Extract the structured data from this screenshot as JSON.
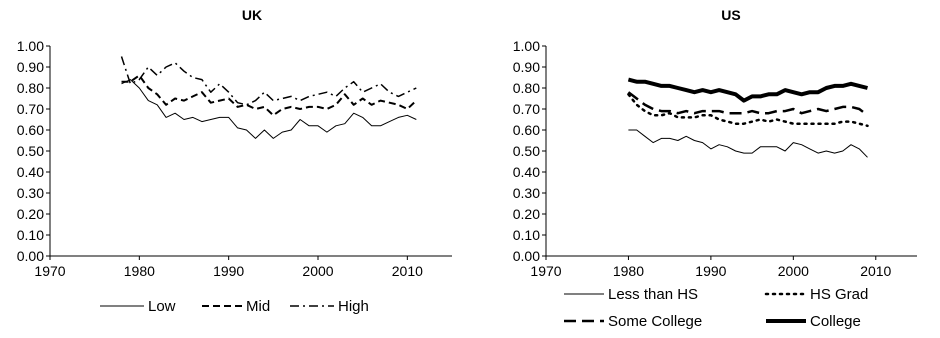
{
  "chart_data": [
    {
      "type": "line",
      "title": "UK",
      "xlabel": "",
      "ylabel": "",
      "xlim": [
        1970,
        2015
      ],
      "ylim": [
        0,
        1
      ],
      "x_ticks": [
        1970,
        1980,
        1990,
        2000,
        2010
      ],
      "y_ticks": [
        "0.00",
        "0.10",
        "0.20",
        "0.30",
        "0.40",
        "0.50",
        "0.60",
        "0.70",
        "0.80",
        "0.90",
        "1.00"
      ],
      "grid": false,
      "legend_position": "bottom",
      "x": [
        1978,
        1979,
        1980,
        1981,
        1982,
        1983,
        1984,
        1985,
        1986,
        1987,
        1988,
        1989,
        1990,
        1991,
        1992,
        1993,
        1994,
        1995,
        1996,
        1997,
        1998,
        1999,
        2000,
        2001,
        2002,
        2003,
        2004,
        2005,
        2006,
        2007,
        2008,
        2009,
        2010,
        2011
      ],
      "series": [
        {
          "name": "Low",
          "dash": "solid",
          "width": 1,
          "values": [
            0.82,
            0.84,
            0.8,
            0.74,
            0.72,
            0.66,
            0.68,
            0.65,
            0.66,
            0.64,
            0.65,
            0.66,
            0.66,
            0.61,
            0.6,
            0.56,
            0.6,
            0.56,
            0.59,
            0.6,
            0.65,
            0.62,
            0.62,
            0.59,
            0.62,
            0.63,
            0.68,
            0.66,
            0.62,
            0.62,
            0.64,
            0.66,
            0.67,
            0.65
          ]
        },
        {
          "name": "Mid",
          "dash": "dash",
          "width": 2,
          "values": [
            0.83,
            0.83,
            0.86,
            0.8,
            0.77,
            0.72,
            0.75,
            0.74,
            0.76,
            0.78,
            0.73,
            0.74,
            0.75,
            0.71,
            0.72,
            0.7,
            0.71,
            0.67,
            0.7,
            0.71,
            0.7,
            0.71,
            0.71,
            0.7,
            0.72,
            0.77,
            0.72,
            0.75,
            0.72,
            0.74,
            0.73,
            0.72,
            0.7,
            0.74
          ]
        },
        {
          "name": "High",
          "dash": "dashdot",
          "width": 1.5,
          "values": [
            0.95,
            0.82,
            0.84,
            0.9,
            0.86,
            0.9,
            0.92,
            0.88,
            0.85,
            0.84,
            0.78,
            0.82,
            0.78,
            0.73,
            0.72,
            0.74,
            0.78,
            0.74,
            0.75,
            0.76,
            0.74,
            0.76,
            0.77,
            0.78,
            0.76,
            0.8,
            0.83,
            0.78,
            0.8,
            0.82,
            0.78,
            0.76,
            0.78,
            0.8
          ]
        }
      ]
    },
    {
      "type": "line",
      "title": "US",
      "xlabel": "",
      "ylabel": "",
      "xlim": [
        1970,
        2015
      ],
      "ylim": [
        0,
        1
      ],
      "x_ticks": [
        1970,
        1980,
        1990,
        2000,
        2010
      ],
      "y_ticks": [
        "0.00",
        "0.10",
        "0.20",
        "0.30",
        "0.40",
        "0.50",
        "0.60",
        "0.70",
        "0.80",
        "0.90",
        "1.00"
      ],
      "grid": false,
      "legend_position": "bottom",
      "x": [
        1980,
        1981,
        1982,
        1983,
        1984,
        1985,
        1986,
        1987,
        1988,
        1989,
        1990,
        1991,
        1992,
        1993,
        1994,
        1995,
        1996,
        1997,
        1998,
        1999,
        2000,
        2001,
        2002,
        2003,
        2004,
        2005,
        2006,
        2007,
        2008,
        2009
      ],
      "series": [
        {
          "name": "Less than HS",
          "dash": "solid",
          "width": 1,
          "values": [
            0.6,
            0.6,
            0.57,
            0.54,
            0.56,
            0.56,
            0.55,
            0.57,
            0.55,
            0.54,
            0.51,
            0.53,
            0.52,
            0.5,
            0.49,
            0.49,
            0.52,
            0.52,
            0.52,
            0.5,
            0.54,
            0.53,
            0.51,
            0.49,
            0.5,
            0.49,
            0.5,
            0.53,
            0.51,
            0.47
          ]
        },
        {
          "name": "HS Grad",
          "dash": "dot",
          "width": 2.5,
          "values": [
            0.77,
            0.72,
            0.69,
            0.67,
            0.67,
            0.68,
            0.66,
            0.66,
            0.66,
            0.67,
            0.67,
            0.65,
            0.64,
            0.63,
            0.63,
            0.64,
            0.65,
            0.64,
            0.65,
            0.64,
            0.63,
            0.63,
            0.63,
            0.63,
            0.63,
            0.63,
            0.64,
            0.64,
            0.63,
            0.62
          ]
        },
        {
          "name": "Some College",
          "dash": "longdash",
          "width": 2.5,
          "values": [
            0.78,
            0.75,
            0.72,
            0.7,
            0.69,
            0.69,
            0.68,
            0.69,
            0.68,
            0.69,
            0.69,
            0.69,
            0.68,
            0.68,
            0.68,
            0.69,
            0.68,
            0.68,
            0.69,
            0.69,
            0.7,
            0.68,
            0.69,
            0.7,
            0.69,
            0.7,
            0.71,
            0.71,
            0.7,
            0.67
          ]
        },
        {
          "name": "College",
          "dash": "solid",
          "width": 4,
          "values": [
            0.84,
            0.83,
            0.83,
            0.82,
            0.81,
            0.81,
            0.8,
            0.79,
            0.78,
            0.79,
            0.78,
            0.79,
            0.78,
            0.77,
            0.74,
            0.76,
            0.76,
            0.77,
            0.77,
            0.79,
            0.78,
            0.77,
            0.78,
            0.78,
            0.8,
            0.81,
            0.81,
            0.82,
            0.81,
            0.8
          ]
        }
      ]
    }
  ]
}
